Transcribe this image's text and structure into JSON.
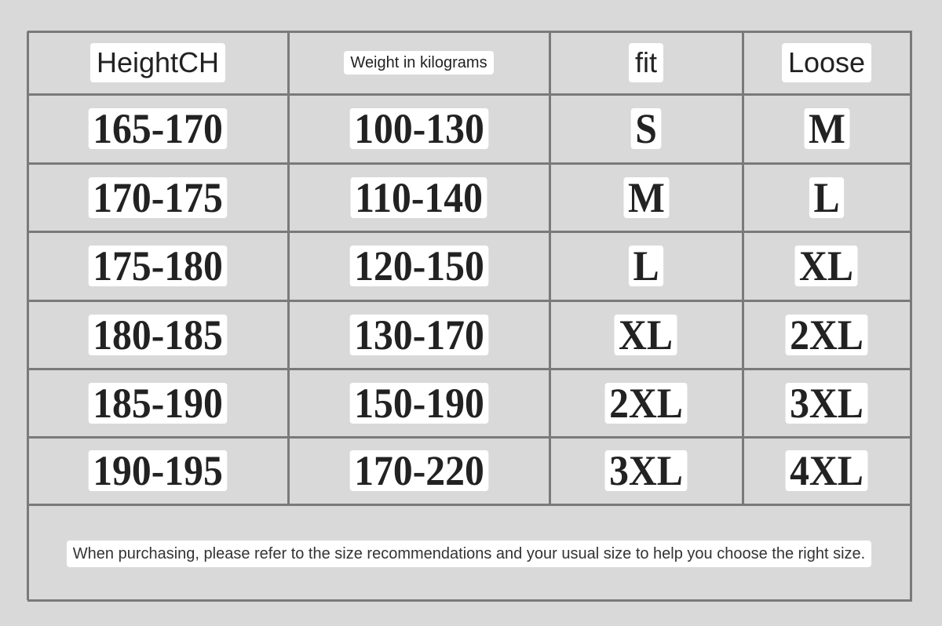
{
  "table": {
    "header": [
      "HeightCH",
      "Weight in kilograms",
      "fit",
      "Loose"
    ],
    "rows": [
      [
        "165-170",
        "100-130",
        "S",
        "M"
      ],
      [
        "170-175",
        "110-140",
        "M",
        "L"
      ],
      [
        "175-180",
        "120-150",
        "L",
        "XL"
      ],
      [
        "180-185",
        "130-170",
        "XL",
        "2XL"
      ],
      [
        "185-190",
        "150-190",
        "2XL",
        "3XL"
      ],
      [
        "190-195",
        "170-220",
        "3XL",
        "4XL"
      ]
    ],
    "note": "When purchasing, please refer to the size recommendations and your usual size to help you choose the right size."
  }
}
